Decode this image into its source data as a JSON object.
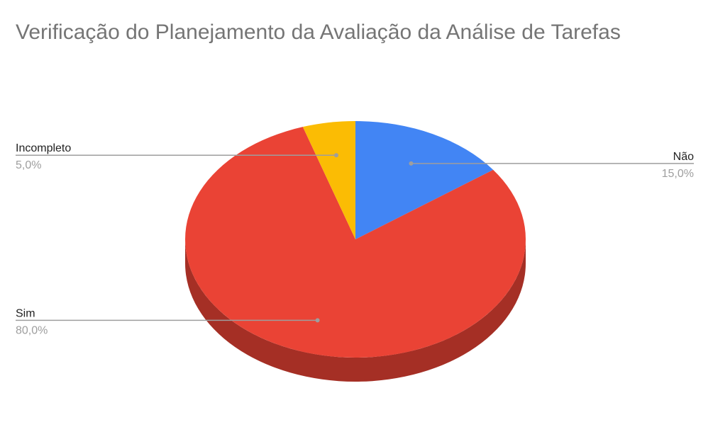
{
  "chart_data": {
    "type": "pie",
    "title": "Verificação do Planejamento da Avaliação da Análise de Tarefas",
    "three_d": true,
    "legend": "labeled",
    "slices": [
      {
        "label": "Não",
        "value": 15.0,
        "percent_label": "15,0%",
        "color": "#4285f4",
        "side_color": "#2a5bb4"
      },
      {
        "label": "Sim",
        "value": 80.0,
        "percent_label": "80,0%",
        "color": "#ea4335",
        "side_color": "#a52f25"
      },
      {
        "label": "Incompleto",
        "value": 5.0,
        "percent_label": "5,0%",
        "color": "#fbbc04",
        "side_color": "#b38603"
      }
    ]
  }
}
